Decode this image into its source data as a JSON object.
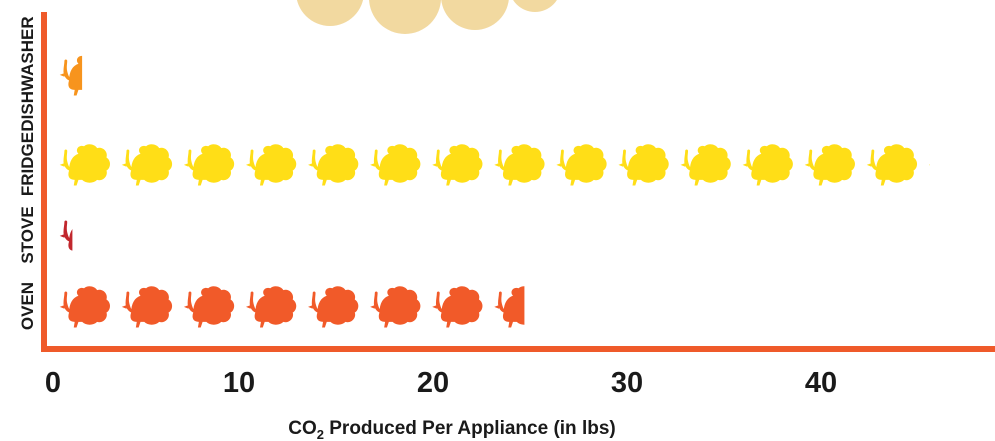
{
  "chart_data": {
    "type": "bar",
    "orientation": "horizontal",
    "mark": "pictograph-turkey",
    "units_per_icon": 3.2,
    "categories": [
      "DISHWASHER",
      "FRIDGE",
      "STOVE",
      "OVEN"
    ],
    "values": [
      1.5,
      45.2,
      1.0,
      24.3
    ],
    "colors": [
      "#f7941d",
      "#ffde17",
      "#c1272d",
      "#f15a29"
    ],
    "xlim": [
      0,
      50
    ],
    "xticks": [
      0,
      10,
      20,
      30,
      40,
      50
    ],
    "xlabel_prefix": "CO",
    "xlabel_sub": "2",
    "xlabel_rest": " Produced Per Appliance (in lbs)",
    "axis_color": "#ef5a2a",
    "decoration_color": "#f2d9a0",
    "grid": false,
    "legend": "none"
  }
}
